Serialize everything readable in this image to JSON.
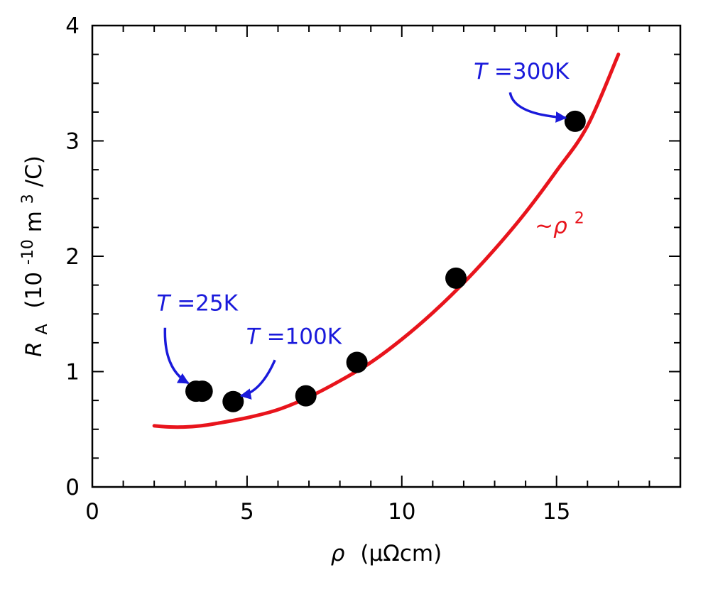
{
  "chart_data": {
    "type": "scatter",
    "title": "",
    "xlabel": {
      "symbol": "ρ",
      "units": "(μΩcm)"
    },
    "ylabel": {
      "symbol": "R",
      "subscript": "A",
      "units_prefix": "(10",
      "units_exponent": "-10",
      "units_mid": "m",
      "units_exponent2": "3",
      "units_suffix": "/C)"
    },
    "xlim": [
      0,
      19
    ],
    "ylim": [
      0,
      4
    ],
    "x_major_ticks": [
      0,
      5,
      10,
      15
    ],
    "x_tick_labels": [
      "0",
      "5",
      "10",
      "15"
    ],
    "x_minor_step": 1,
    "y_major_ticks": [
      0,
      1,
      2,
      3,
      4
    ],
    "y_tick_labels": [
      "0",
      "1",
      "2",
      "3",
      "4"
    ],
    "y_minor_step": 0.25,
    "grid": false,
    "series": [
      {
        "name": "data",
        "kind": "points",
        "color": "#000000",
        "x": [
          3.35,
          3.55,
          4.55,
          6.9,
          8.55,
          11.75,
          15.6
        ],
        "y": [
          0.83,
          0.83,
          0.74,
          0.79,
          1.08,
          1.81,
          3.17
        ]
      },
      {
        "name": "fit",
        "kind": "curve",
        "color": "#e8141c",
        "label_symbol": "~ρ",
        "label_exponent": "2",
        "label_at": {
          "x": 14.3,
          "y": 2.2
        },
        "x": [
          2.0,
          2.5,
          3.0,
          3.5,
          4.0,
          5.0,
          6.0,
          7.0,
          8.0,
          9.0,
          10.0,
          11.0,
          12.0,
          13.0,
          14.0,
          15.0,
          16.0,
          17.0
        ],
        "y": [
          0.53,
          0.52,
          0.52,
          0.53,
          0.55,
          0.6,
          0.67,
          0.78,
          0.92,
          1.08,
          1.28,
          1.51,
          1.77,
          2.06,
          2.38,
          2.74,
          3.13,
          3.75
        ]
      }
    ],
    "annotations": [
      {
        "id": "t25",
        "italic": "T",
        "rest": "=25K",
        "color": "#1a1adb",
        "text_at": {
          "x": 2.35,
          "y": 1.53
        },
        "arrow_from": {
          "x": 2.35,
          "y": 1.38
        },
        "arrow_to": {
          "x": 3.1,
          "y": 0.9
        }
      },
      {
        "id": "t100",
        "italic": "T",
        "rest": "=100K",
        "color": "#1a1adb",
        "text_at": {
          "x": 5.25,
          "y": 1.24
        },
        "arrow_from": {
          "x": 5.9,
          "y": 1.1
        },
        "arrow_to": {
          "x": 4.8,
          "y": 0.79
        }
      },
      {
        "id": "t300",
        "italic": "T",
        "rest": "=300K",
        "color": "#1a1adb",
        "text_at": {
          "x": 12.6,
          "y": 3.54
        },
        "arrow_from": {
          "x": 13.5,
          "y": 3.42
        },
        "arrow_to": {
          "x": 15.3,
          "y": 3.2
        }
      }
    ]
  }
}
